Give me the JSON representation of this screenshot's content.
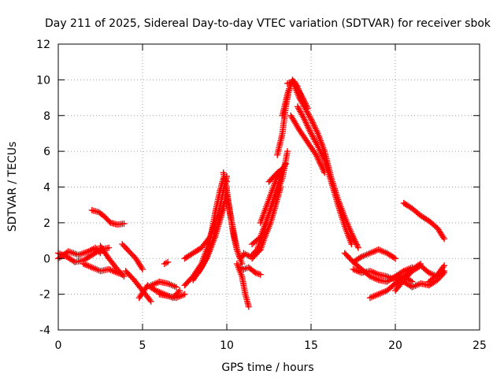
{
  "chart_data": {
    "type": "scatter",
    "title": "Day 211 of 2025, Sidereal Day-to-day VTEC variation (SDTVAR) for receiver sbok",
    "xlabel": "GPS time / hours",
    "ylabel": "SDTVAR / TECUs",
    "xlim": [
      0,
      25
    ],
    "ylim": [
      -4,
      12
    ],
    "xticks": [
      0,
      5,
      10,
      15,
      20,
      25
    ],
    "yticks": [
      -4,
      -2,
      0,
      2,
      4,
      6,
      8,
      10,
      12
    ],
    "grid": true,
    "marker": "+",
    "color": "#ff0000",
    "series": [
      {
        "name": "s1",
        "x": [
          0.0,
          0.5,
          1.0,
          1.5,
          2.0,
          2.5,
          3.0
        ],
        "y": [
          0.3,
          0.1,
          -0.2,
          -0.1,
          0.2,
          0.5,
          0.6
        ]
      },
      {
        "name": "s2",
        "x": [
          0.0,
          0.6,
          1.2,
          1.8,
          2.2,
          2.5
        ],
        "y": [
          0.0,
          0.4,
          0.2,
          0.4,
          0.6,
          0.3
        ]
      },
      {
        "name": "s3",
        "x": [
          1.5,
          2.0,
          2.5,
          3.0,
          3.5,
          3.8
        ],
        "y": [
          -0.3,
          -0.5,
          -0.7,
          -0.6,
          -0.8,
          -0.9
        ]
      },
      {
        "name": "s4",
        "x": [
          2.0,
          2.4,
          2.8,
          3.1,
          3.5,
          3.9
        ],
        "y": [
          2.7,
          2.6,
          2.3,
          2.0,
          1.9,
          1.95
        ]
      },
      {
        "name": "s5",
        "x": [
          2.5,
          3.0,
          3.5,
          3.9
        ],
        "y": [
          0.7,
          0.0,
          -0.6,
          -1.0
        ]
      },
      {
        "name": "s6",
        "x": [
          3.8,
          4.2,
          4.6,
          5.0
        ],
        "y": [
          0.8,
          0.4,
          0.0,
          -0.6
        ]
      },
      {
        "name": "s7",
        "x": [
          4.0,
          4.5,
          5.0,
          5.5
        ],
        "y": [
          -0.7,
          -1.2,
          -1.8,
          -2.4
        ]
      },
      {
        "name": "s8",
        "x": [
          4.8,
          5.3,
          5.8,
          6.3,
          6.8,
          7.2
        ],
        "y": [
          -2.2,
          -1.5,
          -1.8,
          -2.0,
          -2.2,
          -1.8
        ]
      },
      {
        "name": "s9",
        "x": [
          5.5,
          6.0,
          6.5,
          7.0
        ],
        "y": [
          -1.5,
          -1.3,
          -1.4,
          -1.6
        ]
      },
      {
        "name": "s10",
        "x": [
          6.0,
          6.5,
          7.0,
          7.5
        ],
        "y": [
          -2.0,
          -2.1,
          -2.2,
          -2.0
        ]
      },
      {
        "name": "s11",
        "x": [
          6.3,
          6.5
        ],
        "y": [
          -0.3,
          -0.2
        ]
      },
      {
        "name": "s12",
        "x": [
          7.5,
          8.0,
          8.5,
          9.0,
          9.3,
          9.6,
          9.8,
          10.0
        ],
        "y": [
          -1.5,
          -1.0,
          -0.3,
          1.0,
          2.5,
          3.8,
          4.5,
          4.3
        ]
      },
      {
        "name": "s13",
        "x": [
          7.5,
          8.0,
          8.5,
          9.0,
          9.5,
          9.8,
          10.0
        ],
        "y": [
          0.0,
          0.3,
          0.6,
          1.2,
          2.5,
          3.8,
          4.6
        ]
      },
      {
        "name": "s14",
        "x": [
          8.0,
          8.5,
          9.0,
          9.5,
          9.8
        ],
        "y": [
          -1.2,
          -0.5,
          0.5,
          2.0,
          3.0
        ]
      },
      {
        "name": "s15",
        "x": [
          8.3,
          8.8,
          9.3,
          9.8,
          10.0
        ],
        "y": [
          -0.8,
          0.0,
          1.2,
          2.8,
          4.0
        ]
      },
      {
        "name": "s16",
        "x": [
          9.8,
          10.0,
          10.2,
          10.4,
          10.6,
          10.8,
          11.0
        ],
        "y": [
          4.8,
          3.8,
          2.5,
          1.3,
          0.5,
          0.0,
          0.2
        ]
      },
      {
        "name": "s17",
        "x": [
          10.0,
          10.3,
          10.6,
          10.9
        ],
        "y": [
          3.5,
          2.0,
          0.5,
          -0.3
        ]
      },
      {
        "name": "s18",
        "x": [
          10.6,
          10.9,
          11.1,
          11.3
        ],
        "y": [
          -0.3,
          -1.0,
          -2.0,
          -2.7
        ]
      },
      {
        "name": "s19",
        "x": [
          10.8,
          11.0,
          11.3,
          11.7,
          12.0
        ],
        "y": [
          -0.5,
          -0.6,
          -0.5,
          -0.8,
          -0.9
        ]
      },
      {
        "name": "s20",
        "x": [
          11.0,
          11.4,
          11.8,
          12.2,
          12.6,
          13.0,
          13.3
        ],
        "y": [
          0.3,
          0.1,
          0.5,
          1.5,
          2.8,
          4.0,
          5.0
        ]
      },
      {
        "name": "s21",
        "x": [
          11.5,
          12.0,
          12.3,
          12.6,
          12.9,
          13.2
        ],
        "y": [
          0.0,
          0.5,
          1.3,
          2.0,
          3.0,
          4.0
        ]
      },
      {
        "name": "s22",
        "x": [
          11.5,
          12.0,
          12.5,
          13.0,
          13.3,
          13.6
        ],
        "y": [
          0.8,
          1.2,
          2.5,
          3.8,
          4.5,
          6.0
        ]
      },
      {
        "name": "s23",
        "x": [
          12.0,
          12.5,
          13.0,
          13.3
        ],
        "y": [
          2.0,
          3.3,
          4.6,
          5.0
        ]
      },
      {
        "name": "s24",
        "x": [
          12.5,
          13.0,
          13.3,
          13.5
        ],
        "y": [
          4.3,
          4.8,
          5.0,
          5.3
        ]
      },
      {
        "name": "s25",
        "x": [
          13.0,
          13.3,
          13.5,
          13.7
        ],
        "y": [
          5.8,
          7.0,
          8.5,
          9.5
        ]
      },
      {
        "name": "s26",
        "x": [
          13.3,
          13.6,
          13.9,
          14.2,
          14.5,
          14.8
        ],
        "y": [
          8.0,
          9.2,
          10.0,
          9.5,
          9.0,
          8.4
        ]
      },
      {
        "name": "s27",
        "x": [
          13.6,
          14.0,
          14.2,
          14.5
        ],
        "y": [
          9.8,
          9.9,
          9.6,
          8.8
        ]
      },
      {
        "name": "s28",
        "x": [
          14.0,
          14.3,
          14.6,
          15.0,
          15.4,
          15.8,
          16.2,
          16.6,
          17.0,
          17.4,
          17.8
        ],
        "y": [
          9.7,
          9.0,
          8.5,
          7.8,
          7.0,
          6.0,
          4.5,
          3.3,
          2.3,
          1.4,
          0.6
        ]
      },
      {
        "name": "s29",
        "x": [
          14.2,
          14.6,
          15.0,
          15.4,
          15.8,
          16.2,
          16.6,
          17.0,
          17.4
        ],
        "y": [
          8.5,
          7.8,
          7.0,
          6.3,
          5.5,
          4.3,
          3.0,
          1.8,
          0.8
        ]
      },
      {
        "name": "s30",
        "x": [
          13.8,
          14.3,
          14.8,
          15.3,
          15.8
        ],
        "y": [
          8.0,
          7.2,
          6.5,
          5.8,
          4.8
        ]
      },
      {
        "name": "s31",
        "x": [
          17.0,
          17.5,
          18.0,
          18.5,
          19.0,
          19.5,
          20.0,
          20.5,
          21.0
        ],
        "y": [
          0.3,
          -0.2,
          -0.6,
          -1.0,
          -1.2,
          -1.3,
          -1.0,
          -0.7,
          -0.5
        ]
      },
      {
        "name": "s32",
        "x": [
          17.5,
          18.0,
          18.5,
          19.0,
          19.5,
          20.0
        ],
        "y": [
          -0.2,
          0.1,
          0.3,
          0.5,
          0.3,
          0.0
        ]
      },
      {
        "name": "s33",
        "x": [
          17.5,
          18.0,
          18.5,
          19.0,
          19.5,
          20.0,
          20.5,
          21.0
        ],
        "y": [
          -0.6,
          -0.8,
          -0.7,
          -0.9,
          -1.0,
          -1.2,
          -1.0,
          -1.3
        ]
      },
      {
        "name": "s34",
        "x": [
          18.5,
          19.0,
          19.5,
          20.0,
          20.5,
          21.0,
          21.5
        ],
        "y": [
          -2.2,
          -2.0,
          -1.8,
          -1.4,
          -1.0,
          -0.6,
          -0.3
        ]
      },
      {
        "name": "s35",
        "x": [
          20.0,
          20.5,
          21.0,
          21.5
        ],
        "y": [
          -1.8,
          -1.2,
          -0.7,
          -0.4
        ]
      },
      {
        "name": "s36",
        "x": [
          20.5,
          21.0,
          21.5,
          22.0,
          22.5,
          22.9
        ],
        "y": [
          -1.3,
          -1.6,
          -1.4,
          -1.5,
          -1.2,
          -0.8
        ]
      },
      {
        "name": "s37",
        "x": [
          21.5,
          22.0,
          22.5,
          22.9
        ],
        "y": [
          -0.4,
          -0.8,
          -1.0,
          -0.7
        ]
      },
      {
        "name": "s38",
        "x": [
          22.0,
          22.5,
          22.9
        ],
        "y": [
          -1.3,
          -0.9,
          -0.4
        ]
      },
      {
        "name": "s39",
        "x": [
          20.5,
          21.0,
          21.5,
          22.0,
          22.5,
          22.9
        ],
        "y": [
          3.1,
          2.8,
          2.4,
          2.1,
          1.7,
          1.1
        ]
      }
    ]
  }
}
